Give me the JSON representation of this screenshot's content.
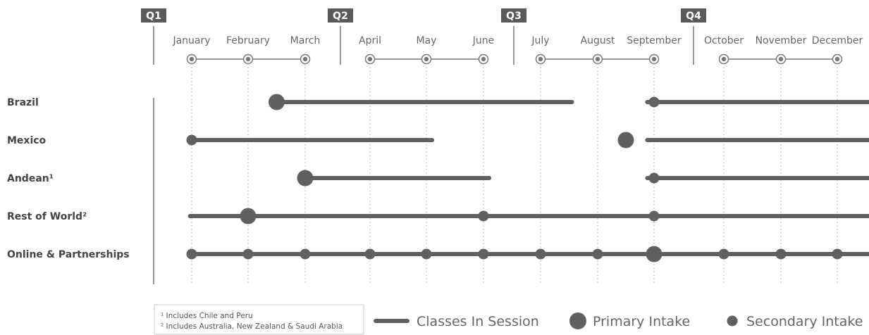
{
  "chart_data": {
    "type": "timeline",
    "title": "",
    "quarters": [
      {
        "label": "Q1",
        "start_month": "January"
      },
      {
        "label": "Q2",
        "start_month": "April"
      },
      {
        "label": "Q3",
        "start_month": "July"
      },
      {
        "label": "Q4",
        "start_month": "October"
      }
    ],
    "months": [
      "January",
      "February",
      "March",
      "April",
      "May",
      "June",
      "July",
      "August",
      "September",
      "October",
      "November",
      "December"
    ],
    "rows": [
      {
        "label": "Brazil",
        "sessions": [
          [
            1.5,
            6.55
          ],
          [
            7.88,
            12.05
          ]
        ],
        "primary_intake": [
          1.5
        ],
        "secondary_intake": [
          8
        ]
      },
      {
        "label": "Mexico",
        "sessions": [
          [
            0,
            4.1
          ],
          [
            7.88,
            12.05
          ]
        ],
        "primary_intake": [
          7.5
        ],
        "secondary_intake": [
          0
        ]
      },
      {
        "label": "Andean¹",
        "sessions": [
          [
            2,
            5.1
          ],
          [
            7.88,
            12.05
          ]
        ],
        "primary_intake": [
          2
        ],
        "secondary_intake": [
          8
        ]
      },
      {
        "label": "Rest of World²",
        "sessions": [
          [
            -0.03,
            12.05
          ]
        ],
        "primary_intake": [
          1
        ],
        "secondary_intake": [
          5,
          8
        ]
      },
      {
        "label": "Online & Partnerships",
        "sessions": [
          [
            0,
            12
          ]
        ],
        "primary_intake": [
          8
        ],
        "secondary_intake": [
          0,
          1,
          2,
          3,
          4,
          5,
          6,
          7,
          9,
          10,
          11
        ]
      }
    ],
    "legend": {
      "session": "Classes In Session",
      "primary": "Primary Intake",
      "secondary": "Secondary Intake"
    },
    "footnotes": [
      "¹ Includes Chile and Peru",
      "² Includes Australia, New Zealand & Saudi Arabia"
    ],
    "colors": {
      "bar": "#606060",
      "dot": "#606060",
      "quarter_tag": "#5a5a5a",
      "axis": "#777777",
      "grid": "#bdbdbd"
    }
  }
}
